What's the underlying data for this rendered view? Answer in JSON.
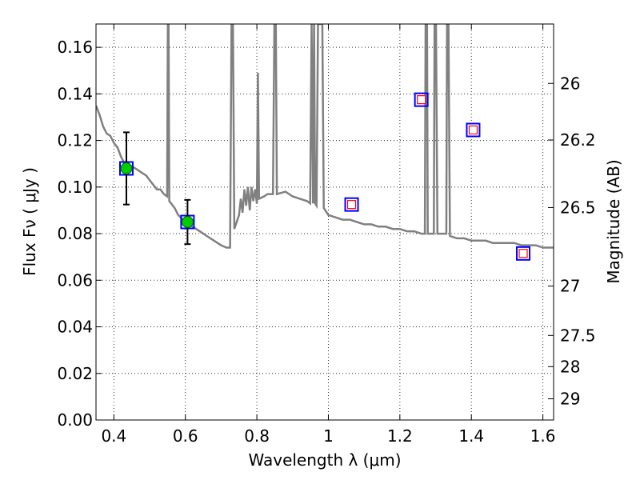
{
  "chart_data": {
    "type": "scatter",
    "title": "",
    "xlabel": "Wavelength  λ (μm)",
    "ylabel": "Flux  Fν  ( μJy )",
    "ylabel_right": "Magnitude (AB)",
    "xlim": [
      0.35,
      1.63
    ],
    "ylim": [
      0.0,
      0.17
    ],
    "grid": true,
    "x_ticks": [
      0.4,
      0.6,
      0.8,
      1.0,
      1.2,
      1.4,
      1.6
    ],
    "x_tick_labels": [
      "0.4",
      "0.6",
      "0.8",
      "1",
      "1.2",
      "1.4",
      "1.6"
    ],
    "y_ticks": [
      0.0,
      0.02,
      0.04,
      0.06,
      0.08,
      0.1,
      0.12,
      0.14,
      0.16
    ],
    "y_tick_labels": [
      "0.00",
      "0.02",
      "0.04",
      "0.06",
      "0.08",
      "0.10",
      "0.12",
      "0.14",
      "0.16"
    ],
    "right_ticks": [
      {
        "label": "26",
        "flux": 0.1445
      },
      {
        "label": "26.2",
        "flux": 0.1202
      },
      {
        "label": "26.5",
        "flux": 0.0912
      },
      {
        "label": "27",
        "flux": 0.0575
      },
      {
        "label": "27.5",
        "flux": 0.0363
      },
      {
        "label": "28",
        "flux": 0.0229
      },
      {
        "label": "29",
        "flux": 0.0091
      }
    ],
    "series": [
      {
        "kind": "model_spectrum",
        "color": "#808080",
        "points": [
          [
            0.35,
            0.135
          ],
          [
            0.36,
            0.131
          ],
          [
            0.37,
            0.126
          ],
          [
            0.38,
            0.123
          ],
          [
            0.39,
            0.122
          ],
          [
            0.4,
            0.119
          ],
          [
            0.41,
            0.117
          ],
          [
            0.42,
            0.113
          ],
          [
            0.43,
            0.11
          ],
          [
            0.44,
            0.109
          ],
          [
            0.45,
            0.109
          ],
          [
            0.46,
            0.108
          ],
          [
            0.47,
            0.107
          ],
          [
            0.48,
            0.106
          ],
          [
            0.49,
            0.105
          ],
          [
            0.5,
            0.103
          ],
          [
            0.51,
            0.101
          ],
          [
            0.52,
            0.099
          ],
          [
            0.53,
            0.099
          ],
          [
            0.54,
            0.097
          ],
          [
            0.549,
            0.096
          ],
          [
            0.551,
            0.17
          ],
          [
            0.553,
            0.17
          ],
          [
            0.555,
            0.094
          ],
          [
            0.57,
            0.091
          ],
          [
            0.58,
            0.088
          ],
          [
            0.6,
            0.085
          ],
          [
            0.62,
            0.083
          ],
          [
            0.64,
            0.081
          ],
          [
            0.66,
            0.079
          ],
          [
            0.68,
            0.077
          ],
          [
            0.7,
            0.075
          ],
          [
            0.715,
            0.074
          ],
          [
            0.725,
            0.074
          ],
          [
            0.729,
            0.17
          ],
          [
            0.733,
            0.17
          ],
          [
            0.737,
            0.082
          ],
          [
            0.75,
            0.088
          ],
          [
            0.755,
            0.095
          ],
          [
            0.76,
            0.089
          ],
          [
            0.765,
            0.099
          ],
          [
            0.77,
            0.092
          ],
          [
            0.775,
            0.1
          ],
          [
            0.78,
            0.09
          ],
          [
            0.785,
            0.1
          ],
          [
            0.79,
            0.094
          ],
          [
            0.795,
            0.099
          ],
          [
            0.8,
            0.093
          ],
          [
            0.803,
            0.149
          ],
          [
            0.806,
            0.095
          ],
          [
            0.82,
            0.096
          ],
          [
            0.83,
            0.097
          ],
          [
            0.845,
            0.097
          ],
          [
            0.849,
            0.17
          ],
          [
            0.853,
            0.17
          ],
          [
            0.856,
            0.097
          ],
          [
            0.88,
            0.098
          ],
          [
            0.9,
            0.096
          ],
          [
            0.92,
            0.095
          ],
          [
            0.94,
            0.094
          ],
          [
            0.949,
            0.093
          ],
          [
            0.953,
            0.17
          ],
          [
            0.957,
            0.093
          ],
          [
            0.96,
            0.17
          ],
          [
            0.963,
            0.093
          ],
          [
            0.967,
            0.092
          ],
          [
            0.971,
            0.17
          ],
          [
            0.975,
            0.17
          ],
          [
            0.979,
            0.17
          ],
          [
            0.983,
            0.17
          ],
          [
            0.987,
            0.091
          ],
          [
            1.0,
            0.088
          ],
          [
            1.02,
            0.087
          ],
          [
            1.04,
            0.086
          ],
          [
            1.06,
            0.086
          ],
          [
            1.08,
            0.085
          ],
          [
            1.1,
            0.084
          ],
          [
            1.12,
            0.084
          ],
          [
            1.14,
            0.083
          ],
          [
            1.16,
            0.083
          ],
          [
            1.18,
            0.082
          ],
          [
            1.2,
            0.082
          ],
          [
            1.22,
            0.081
          ],
          [
            1.24,
            0.081
          ],
          [
            1.26,
            0.08
          ],
          [
            1.27,
            0.08
          ],
          [
            1.272,
            0.17
          ],
          [
            1.276,
            0.17
          ],
          [
            1.278,
            0.08
          ],
          [
            1.295,
            0.08
          ],
          [
            1.297,
            0.17
          ],
          [
            1.301,
            0.17
          ],
          [
            1.305,
            0.08
          ],
          [
            1.33,
            0.08
          ],
          [
            1.332,
            0.17
          ],
          [
            1.336,
            0.17
          ],
          [
            1.34,
            0.079
          ],
          [
            1.36,
            0.078
          ],
          [
            1.38,
            0.078
          ],
          [
            1.4,
            0.077
          ],
          [
            1.42,
            0.077
          ],
          [
            1.44,
            0.077
          ],
          [
            1.46,
            0.076
          ],
          [
            1.48,
            0.076
          ],
          [
            1.5,
            0.076
          ],
          [
            1.52,
            0.076
          ],
          [
            1.54,
            0.075
          ],
          [
            1.56,
            0.075
          ],
          [
            1.58,
            0.075
          ],
          [
            1.6,
            0.074
          ],
          [
            1.63,
            0.074
          ]
        ]
      },
      {
        "kind": "detections",
        "color": "#00cc00",
        "points": [
          {
            "x": 0.435,
            "y": 0.108,
            "err": 0.0155
          },
          {
            "x": 0.606,
            "y": 0.085,
            "err": 0.0095
          }
        ]
      },
      {
        "kind": "model_photometry",
        "color": "#0000ff",
        "points": [
          {
            "x": 0.435,
            "y": 0.108
          },
          {
            "x": 0.606,
            "y": 0.085
          },
          {
            "x": 1.065,
            "y": 0.0925
          },
          {
            "x": 1.26,
            "y": 0.1375
          },
          {
            "x": 1.405,
            "y": 0.1245
          },
          {
            "x": 1.545,
            "y": 0.0715
          }
        ]
      },
      {
        "kind": "upper_points",
        "color": "#ff0000",
        "points": [
          {
            "x": 1.065,
            "y": 0.0925
          },
          {
            "x": 1.26,
            "y": 0.1375
          },
          {
            "x": 1.405,
            "y": 0.1245
          },
          {
            "x": 1.545,
            "y": 0.0715
          }
        ]
      }
    ]
  }
}
